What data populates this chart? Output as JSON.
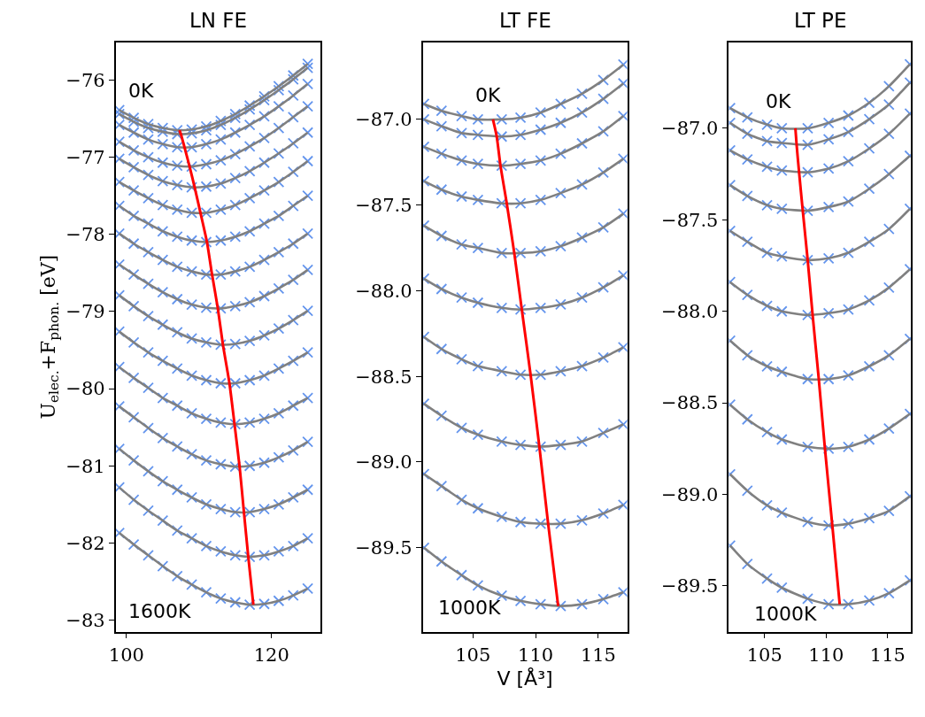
{
  "chart_data": [
    {
      "type": "line",
      "title": "LN FE",
      "ylabel": "U$_{elec.}$+F$_{phon.}$ [eV]",
      "grid": false,
      "x": [
        99,
        101,
        103,
        105,
        107,
        109,
        111,
        113,
        115,
        117,
        119,
        121,
        123,
        125
      ],
      "xlim": [
        98.5,
        126.7
      ],
      "ylim": [
        -83.15,
        -75.51
      ],
      "xticks": [
        100,
        120
      ],
      "yticks": [
        -83,
        -82,
        -81,
        -80,
        -79,
        -78,
        -77,
        -76
      ],
      "annotations": [
        "0K",
        "1600K"
      ],
      "series": [
        {
          "type": "scatter",
          "marker": "cross",
          "color": "#6495ed",
          "values": [
            -76.39,
            -76.49,
            -76.57,
            -76.62,
            -76.65,
            -76.64,
            -76.6,
            -76.53,
            -76.44,
            -76.33,
            -76.21,
            -76.08,
            -75.94,
            -75.79
          ]
        },
        {
          "type": "scatter",
          "marker": "cross",
          "color": "#6495ed",
          "values": [
            -76.44,
            -76.54,
            -76.62,
            -76.67,
            -76.7,
            -76.69,
            -76.65,
            -76.58,
            -76.49,
            -76.38,
            -76.26,
            -76.13,
            -75.99,
            -75.84
          ]
        },
        {
          "type": "scatter",
          "marker": "cross",
          "color": "#6495ed",
          "values": [
            -76.58,
            -76.68,
            -76.77,
            -76.83,
            -76.87,
            -76.87,
            -76.83,
            -76.77,
            -76.68,
            -76.58,
            -76.47,
            -76.34,
            -76.2,
            -76.05
          ]
        },
        {
          "type": "scatter",
          "marker": "cross",
          "color": "#6495ed",
          "values": [
            -76.8,
            -76.91,
            -77.0,
            -77.07,
            -77.11,
            -77.12,
            -77.09,
            -77.04,
            -76.96,
            -76.86,
            -76.75,
            -76.62,
            -76.48,
            -76.34
          ]
        },
        {
          "type": "scatter",
          "marker": "cross",
          "color": "#6495ed",
          "values": [
            -77.02,
            -77.13,
            -77.23,
            -77.31,
            -77.36,
            -77.39,
            -77.38,
            -77.34,
            -77.27,
            -77.18,
            -77.07,
            -76.95,
            -76.82,
            -76.68
          ]
        },
        {
          "type": "scatter",
          "marker": "cross",
          "color": "#6495ed",
          "values": [
            -77.32,
            -77.43,
            -77.53,
            -77.62,
            -77.68,
            -77.72,
            -77.72,
            -77.68,
            -77.62,
            -77.53,
            -77.43,
            -77.32,
            -77.19,
            -77.05
          ]
        },
        {
          "type": "scatter",
          "marker": "cross",
          "color": "#6495ed",
          "values": [
            -77.63,
            -77.76,
            -77.86,
            -77.96,
            -78.03,
            -78.08,
            -78.1,
            -78.08,
            -78.03,
            -77.96,
            -77.86,
            -77.76,
            -77.63,
            -77.5
          ]
        },
        {
          "type": "scatter",
          "marker": "cross",
          "color": "#6495ed",
          "values": [
            -77.99,
            -78.12,
            -78.23,
            -78.33,
            -78.42,
            -78.48,
            -78.52,
            -78.52,
            -78.48,
            -78.42,
            -78.33,
            -78.23,
            -78.12,
            -77.99
          ]
        },
        {
          "type": "scatter",
          "marker": "cross",
          "color": "#6495ed",
          "values": [
            -78.39,
            -78.52,
            -78.64,
            -78.75,
            -78.84,
            -78.91,
            -78.95,
            -78.96,
            -78.93,
            -78.88,
            -78.8,
            -78.7,
            -78.59,
            -78.46
          ]
        },
        {
          "type": "scatter",
          "marker": "cross",
          "color": "#6495ed",
          "values": [
            -78.79,
            -78.93,
            -79.06,
            -79.17,
            -79.27,
            -79.35,
            -79.4,
            -79.43,
            -79.42,
            -79.38,
            -79.31,
            -79.22,
            -79.11,
            -78.99
          ]
        },
        {
          "type": "scatter",
          "marker": "cross",
          "color": "#6495ed",
          "values": [
            -79.26,
            -79.4,
            -79.53,
            -79.64,
            -79.74,
            -79.83,
            -79.89,
            -79.93,
            -79.93,
            -79.89,
            -79.83,
            -79.74,
            -79.64,
            -79.53
          ]
        },
        {
          "type": "scatter",
          "marker": "cross",
          "color": "#6495ed",
          "values": [
            -79.72,
            -79.86,
            -79.99,
            -80.12,
            -80.22,
            -80.32,
            -80.39,
            -80.44,
            -80.46,
            -80.44,
            -80.39,
            -80.32,
            -80.22,
            -80.12
          ]
        },
        {
          "type": "scatter",
          "marker": "cross",
          "color": "#6495ed",
          "values": [
            -80.23,
            -80.37,
            -80.51,
            -80.64,
            -80.75,
            -80.85,
            -80.93,
            -80.98,
            -81.01,
            -81.0,
            -80.96,
            -80.89,
            -80.8,
            -80.69
          ]
        },
        {
          "type": "scatter",
          "marker": "cross",
          "color": "#6495ed",
          "values": [
            -80.78,
            -80.93,
            -81.07,
            -81.2,
            -81.31,
            -81.41,
            -81.5,
            -81.56,
            -81.6,
            -81.6,
            -81.56,
            -81.5,
            -81.41,
            -81.31
          ]
        },
        {
          "type": "scatter",
          "marker": "cross",
          "color": "#6495ed",
          "values": [
            -81.28,
            -81.44,
            -81.58,
            -81.71,
            -81.84,
            -81.94,
            -82.04,
            -82.11,
            -82.16,
            -82.18,
            -82.16,
            -82.11,
            -82.04,
            -81.94
          ]
        },
        {
          "type": "scatter",
          "marker": "cross",
          "color": "#6495ed",
          "values": [
            -81.87,
            -82.02,
            -82.16,
            -82.3,
            -82.43,
            -82.54,
            -82.64,
            -82.72,
            -82.77,
            -82.8,
            -82.79,
            -82.75,
            -82.68,
            -82.59
          ]
        },
        {
          "type": "line",
          "color": "#808080",
          "values": [
            -76.39,
            -76.49,
            -76.57,
            -76.62,
            -76.65,
            -76.64,
            -76.6,
            -76.53,
            -76.44,
            -76.33,
            -76.21,
            -76.08,
            -75.94,
            -75.79
          ]
        },
        {
          "type": "line",
          "color": "#808080",
          "values": [
            -76.44,
            -76.54,
            -76.62,
            -76.67,
            -76.7,
            -76.69,
            -76.65,
            -76.58,
            -76.49,
            -76.38,
            -76.26,
            -76.13,
            -75.99,
            -75.84
          ]
        },
        {
          "type": "line",
          "color": "#808080",
          "values": [
            -76.58,
            -76.68,
            -76.77,
            -76.83,
            -76.87,
            -76.87,
            -76.83,
            -76.77,
            -76.68,
            -76.58,
            -76.47,
            -76.34,
            -76.2,
            -76.05
          ]
        },
        {
          "type": "line",
          "color": "#808080",
          "values": [
            -76.8,
            -76.91,
            -77.0,
            -77.07,
            -77.11,
            -77.12,
            -77.09,
            -77.04,
            -76.96,
            -76.86,
            -76.75,
            -76.62,
            -76.48,
            -76.34
          ]
        },
        {
          "type": "line",
          "color": "#808080",
          "values": [
            -77.02,
            -77.13,
            -77.23,
            -77.31,
            -77.36,
            -77.39,
            -77.38,
            -77.34,
            -77.27,
            -77.18,
            -77.07,
            -76.95,
            -76.82,
            -76.68
          ]
        },
        {
          "type": "line",
          "color": "#808080",
          "values": [
            -77.32,
            -77.43,
            -77.53,
            -77.62,
            -77.68,
            -77.72,
            -77.72,
            -77.68,
            -77.62,
            -77.53,
            -77.43,
            -77.32,
            -77.19,
            -77.05
          ]
        },
        {
          "type": "line",
          "color": "#808080",
          "values": [
            -77.63,
            -77.76,
            -77.86,
            -77.96,
            -78.03,
            -78.08,
            -78.1,
            -78.08,
            -78.03,
            -77.96,
            -77.86,
            -77.76,
            -77.63,
            -77.5
          ]
        },
        {
          "type": "line",
          "color": "#808080",
          "values": [
            -77.99,
            -78.12,
            -78.23,
            -78.33,
            -78.42,
            -78.48,
            -78.52,
            -78.52,
            -78.48,
            -78.42,
            -78.33,
            -78.23,
            -78.12,
            -77.99
          ]
        },
        {
          "type": "line",
          "color": "#808080",
          "values": [
            -78.39,
            -78.52,
            -78.64,
            -78.75,
            -78.84,
            -78.91,
            -78.95,
            -78.96,
            -78.93,
            -78.88,
            -78.8,
            -78.7,
            -78.59,
            -78.46
          ]
        },
        {
          "type": "line",
          "color": "#808080",
          "values": [
            -78.79,
            -78.93,
            -79.06,
            -79.17,
            -79.27,
            -79.35,
            -79.4,
            -79.43,
            -79.42,
            -79.38,
            -79.31,
            -79.22,
            -79.11,
            -78.99
          ]
        },
        {
          "type": "line",
          "color": "#808080",
          "values": [
            -79.26,
            -79.4,
            -79.53,
            -79.64,
            -79.74,
            -79.83,
            -79.89,
            -79.93,
            -79.93,
            -79.89,
            -79.83,
            -79.74,
            -79.64,
            -79.53
          ]
        },
        {
          "type": "line",
          "color": "#808080",
          "values": [
            -79.72,
            -79.86,
            -79.99,
            -80.12,
            -80.22,
            -80.32,
            -80.39,
            -80.44,
            -80.46,
            -80.44,
            -80.39,
            -80.32,
            -80.22,
            -80.12
          ]
        },
        {
          "type": "line",
          "color": "#808080",
          "values": [
            -80.23,
            -80.37,
            -80.51,
            -80.64,
            -80.75,
            -80.85,
            -80.93,
            -80.98,
            -81.01,
            -81.0,
            -80.96,
            -80.89,
            -80.8,
            -80.69
          ]
        },
        {
          "type": "line",
          "color": "#808080",
          "values": [
            -80.78,
            -80.93,
            -81.07,
            -81.2,
            -81.31,
            -81.41,
            -81.5,
            -81.56,
            -81.6,
            -81.6,
            -81.56,
            -81.5,
            -81.41,
            -81.31
          ]
        },
        {
          "type": "line",
          "color": "#808080",
          "values": [
            -81.28,
            -81.44,
            -81.58,
            -81.71,
            -81.84,
            -81.94,
            -82.04,
            -82.11,
            -82.16,
            -82.18,
            -82.16,
            -82.11,
            -82.04,
            -81.94
          ]
        },
        {
          "type": "line",
          "color": "#808080",
          "values": [
            -81.87,
            -82.02,
            -82.16,
            -82.3,
            -82.43,
            -82.54,
            -82.64,
            -82.72,
            -82.77,
            -82.8,
            -82.79,
            -82.75,
            -82.68,
            -82.59
          ]
        },
        {
          "type": "line",
          "color": "#ff0000",
          "x": [
            107.3,
            107.5,
            108.0,
            108.7,
            109.4,
            110.2,
            111.1,
            111.8,
            112.6,
            113.3,
            114.2,
            114.9,
            115.6,
            116.2,
            116.8,
            117.5
          ],
          "values": [
            -76.65,
            -76.7,
            -76.87,
            -77.12,
            -77.39,
            -77.72,
            -78.1,
            -78.52,
            -78.96,
            -79.43,
            -79.93,
            -80.46,
            -81.01,
            -81.6,
            -82.18,
            -82.8
          ]
        }
      ]
    },
    {
      "type": "line",
      "title": "LT FE",
      "xlabel": "V [Å³]",
      "grid": false,
      "x": [
        101.1,
        102.5,
        104.1,
        105.4,
        107.3,
        108.8,
        110.4,
        112.0,
        113.7,
        115.4,
        117.0
      ],
      "xlim": [
        101.0,
        117.3
      ],
      "ylim": [
        -89.99,
        -86.55
      ],
      "xticks": [
        105,
        110,
        115
      ],
      "yticks": [
        -89.5,
        {
          "value": -89,
          "label": "−89.0"
        },
        -88.5,
        {
          "value": -88,
          "label": "−88.0"
        },
        -87.5,
        {
          "value": -87,
          "label": "−87.0"
        }
      ],
      "annotations": [
        "0K",
        "1000K"
      ],
      "series": [
        {
          "type": "scatter",
          "marker": "cross",
          "color": "#6495ed",
          "values": [
            -86.91,
            -86.95,
            -86.98,
            -87.0,
            -87.0,
            -86.99,
            -86.96,
            -86.91,
            -86.85,
            -86.77,
            -86.68
          ]
        },
        {
          "type": "scatter",
          "marker": "cross",
          "color": "#6495ed",
          "values": [
            -87.0,
            -87.04,
            -87.08,
            -87.09,
            -87.1,
            -87.09,
            -87.06,
            -87.02,
            -86.96,
            -86.88,
            -86.79
          ]
        },
        {
          "type": "scatter",
          "marker": "cross",
          "color": "#6495ed",
          "values": [
            -87.16,
            -87.2,
            -87.24,
            -87.26,
            -87.27,
            -87.26,
            -87.24,
            -87.2,
            -87.14,
            -87.07,
            -86.98
          ]
        },
        {
          "type": "scatter",
          "marker": "cross",
          "color": "#6495ed",
          "values": [
            -87.36,
            -87.41,
            -87.45,
            -87.47,
            -87.49,
            -87.49,
            -87.47,
            -87.43,
            -87.38,
            -87.31,
            -87.23
          ]
        },
        {
          "type": "scatter",
          "marker": "cross",
          "color": "#6495ed",
          "values": [
            -87.62,
            -87.68,
            -87.73,
            -87.75,
            -87.78,
            -87.78,
            -87.77,
            -87.74,
            -87.69,
            -87.63,
            -87.55
          ]
        },
        {
          "type": "scatter",
          "marker": "cross",
          "color": "#6495ed",
          "values": [
            -87.93,
            -87.99,
            -88.04,
            -88.07,
            -88.1,
            -88.11,
            -88.1,
            -88.08,
            -88.04,
            -87.98,
            -87.91
          ]
        },
        {
          "type": "scatter",
          "marker": "cross",
          "color": "#6495ed",
          "values": [
            -88.27,
            -88.34,
            -88.4,
            -88.44,
            -88.47,
            -88.49,
            -88.49,
            -88.47,
            -88.44,
            -88.39,
            -88.33
          ]
        },
        {
          "type": "scatter",
          "marker": "cross",
          "color": "#6495ed",
          "values": [
            -88.66,
            -88.73,
            -88.8,
            -88.84,
            -88.88,
            -88.9,
            -88.91,
            -88.9,
            -88.88,
            -88.83,
            -88.78
          ]
        },
        {
          "type": "scatter",
          "marker": "cross",
          "color": "#6495ed",
          "values": [
            -89.07,
            -89.14,
            -89.22,
            -89.27,
            -89.32,
            -89.35,
            -89.36,
            -89.36,
            -89.34,
            -89.3,
            -89.25
          ]
        },
        {
          "type": "scatter",
          "marker": "cross",
          "color": "#6495ed",
          "values": [
            -89.5,
            -89.58,
            -89.66,
            -89.72,
            -89.78,
            -89.81,
            -89.83,
            -89.84,
            -89.83,
            -89.8,
            -89.76
          ]
        },
        {
          "type": "line",
          "color": "#808080",
          "values": [
            -86.91,
            -86.95,
            -86.98,
            -87.0,
            -87.0,
            -86.99,
            -86.96,
            -86.91,
            -86.85,
            -86.77,
            -86.68
          ]
        },
        {
          "type": "line",
          "color": "#808080",
          "values": [
            -87.0,
            -87.04,
            -87.08,
            -87.09,
            -87.1,
            -87.09,
            -87.06,
            -87.02,
            -86.96,
            -86.88,
            -86.79
          ]
        },
        {
          "type": "line",
          "color": "#808080",
          "values": [
            -87.16,
            -87.2,
            -87.24,
            -87.26,
            -87.27,
            -87.26,
            -87.24,
            -87.2,
            -87.14,
            -87.07,
            -86.98
          ]
        },
        {
          "type": "line",
          "color": "#808080",
          "values": [
            -87.36,
            -87.41,
            -87.45,
            -87.47,
            -87.49,
            -87.49,
            -87.47,
            -87.43,
            -87.38,
            -87.31,
            -87.23
          ]
        },
        {
          "type": "line",
          "color": "#808080",
          "values": [
            -87.62,
            -87.68,
            -87.73,
            -87.75,
            -87.78,
            -87.78,
            -87.77,
            -87.74,
            -87.69,
            -87.63,
            -87.55
          ]
        },
        {
          "type": "line",
          "color": "#808080",
          "values": [
            -87.93,
            -87.99,
            -88.04,
            -88.07,
            -88.1,
            -88.11,
            -88.1,
            -88.08,
            -88.04,
            -87.98,
            -87.91
          ]
        },
        {
          "type": "line",
          "color": "#808080",
          "values": [
            -88.27,
            -88.34,
            -88.4,
            -88.44,
            -88.47,
            -88.49,
            -88.49,
            -88.47,
            -88.44,
            -88.39,
            -88.33
          ]
        },
        {
          "type": "line",
          "color": "#808080",
          "values": [
            -88.66,
            -88.73,
            -88.8,
            -88.84,
            -88.88,
            -88.9,
            -88.91,
            -88.9,
            -88.88,
            -88.83,
            -88.78
          ]
        },
        {
          "type": "line",
          "color": "#808080",
          "values": [
            -89.07,
            -89.14,
            -89.22,
            -89.27,
            -89.32,
            -89.35,
            -89.36,
            -89.36,
            -89.34,
            -89.3,
            -89.25
          ]
        },
        {
          "type": "line",
          "color": "#808080",
          "values": [
            -89.5,
            -89.58,
            -89.66,
            -89.72,
            -89.78,
            -89.81,
            -89.83,
            -89.84,
            -89.83,
            -89.8,
            -89.76
          ]
        },
        {
          "type": "line",
          "color": "#ff0000",
          "x": [
            106.6,
            106.9,
            107.2,
            107.7,
            108.3,
            108.9,
            109.6,
            110.3,
            111.0,
            111.8
          ],
          "values": [
            -87.0,
            -87.1,
            -87.27,
            -87.49,
            -87.78,
            -88.11,
            -88.49,
            -88.91,
            -89.36,
            -89.84
          ]
        }
      ]
    },
    {
      "type": "line",
      "title": "LT PE",
      "grid": false,
      "x": [
        102.2,
        103.6,
        105.2,
        106.4,
        108.5,
        110.2,
        111.8,
        113.5,
        115.1,
        116.8
      ],
      "xlim": [
        102.1,
        116.9
      ],
      "ylim": [
        -89.75,
        -86.53
      ],
      "xticks": [
        105,
        110,
        115
      ],
      "yticks": [
        -89.5,
        {
          "value": -89,
          "label": "−89.0"
        },
        -88.5,
        {
          "value": -88,
          "label": "−88.0"
        },
        -87.5,
        {
          "value": -87,
          "label": "−87.0"
        }
      ],
      "annotations": [
        "0K",
        "1000K"
      ],
      "series": [
        {
          "type": "scatter",
          "marker": "cross",
          "color": "#6495ed",
          "values": [
            -86.89,
            -86.94,
            -86.98,
            -87.0,
            -87.0,
            -86.97,
            -86.93,
            -86.86,
            -86.77,
            -86.65
          ]
        },
        {
          "type": "scatter",
          "marker": "cross",
          "color": "#6495ed",
          "values": [
            -86.97,
            -87.03,
            -87.07,
            -87.08,
            -87.09,
            -87.06,
            -87.02,
            -86.95,
            -86.87,
            -86.75
          ]
        },
        {
          "type": "scatter",
          "marker": "cross",
          "color": "#6495ed",
          "values": [
            -87.12,
            -87.17,
            -87.21,
            -87.23,
            -87.24,
            -87.22,
            -87.18,
            -87.11,
            -87.03,
            -86.92
          ]
        },
        {
          "type": "scatter",
          "marker": "cross",
          "color": "#6495ed",
          "values": [
            -87.31,
            -87.37,
            -87.42,
            -87.44,
            -87.45,
            -87.43,
            -87.4,
            -87.33,
            -87.25,
            -87.15
          ]
        },
        {
          "type": "scatter",
          "marker": "cross",
          "color": "#6495ed",
          "values": [
            -87.56,
            -87.62,
            -87.68,
            -87.7,
            -87.72,
            -87.71,
            -87.68,
            -87.62,
            -87.55,
            -87.44
          ]
        },
        {
          "type": "scatter",
          "marker": "cross",
          "color": "#6495ed",
          "values": [
            -87.84,
            -87.91,
            -87.97,
            -88.0,
            -88.02,
            -88.01,
            -87.99,
            -87.94,
            -87.87,
            -87.77
          ]
        },
        {
          "type": "scatter",
          "marker": "cross",
          "color": "#6495ed",
          "values": [
            -88.16,
            -88.24,
            -88.3,
            -88.33,
            -88.37,
            -88.37,
            -88.35,
            -88.3,
            -88.24,
            -88.15
          ]
        },
        {
          "type": "scatter",
          "marker": "cross",
          "color": "#6495ed",
          "values": [
            -88.51,
            -88.59,
            -88.66,
            -88.7,
            -88.74,
            -88.75,
            -88.74,
            -88.7,
            -88.64,
            -88.56
          ]
        },
        {
          "type": "scatter",
          "marker": "cross",
          "color": "#6495ed",
          "values": [
            -88.89,
            -88.98,
            -89.06,
            -89.1,
            -89.15,
            -89.17,
            -89.16,
            -89.13,
            -89.09,
            -89.01
          ]
        },
        {
          "type": "scatter",
          "marker": "cross",
          "color": "#6495ed",
          "values": [
            -89.28,
            -89.38,
            -89.46,
            -89.51,
            -89.57,
            -89.6,
            -89.6,
            -89.58,
            -89.54,
            -89.47
          ]
        },
        {
          "type": "line",
          "color": "#808080",
          "values": [
            -86.89,
            -86.94,
            -86.98,
            -87.0,
            -87.0,
            -86.97,
            -86.93,
            -86.86,
            -86.77,
            -86.65
          ]
        },
        {
          "type": "line",
          "color": "#808080",
          "values": [
            -86.97,
            -87.03,
            -87.07,
            -87.08,
            -87.09,
            -87.06,
            -87.02,
            -86.95,
            -86.87,
            -86.75
          ]
        },
        {
          "type": "line",
          "color": "#808080",
          "values": [
            -87.12,
            -87.17,
            -87.21,
            -87.23,
            -87.24,
            -87.22,
            -87.18,
            -87.11,
            -87.03,
            -86.92
          ]
        },
        {
          "type": "line",
          "color": "#808080",
          "values": [
            -87.31,
            -87.37,
            -87.42,
            -87.44,
            -87.45,
            -87.43,
            -87.4,
            -87.33,
            -87.25,
            -87.15
          ]
        },
        {
          "type": "line",
          "color": "#808080",
          "values": [
            -87.56,
            -87.62,
            -87.68,
            -87.7,
            -87.72,
            -87.71,
            -87.68,
            -87.62,
            -87.55,
            -87.44
          ]
        },
        {
          "type": "line",
          "color": "#808080",
          "values": [
            -87.84,
            -87.91,
            -87.97,
            -88.0,
            -88.02,
            -88.01,
            -87.99,
            -87.94,
            -87.87,
            -87.77
          ]
        },
        {
          "type": "line",
          "color": "#808080",
          "values": [
            -88.16,
            -88.24,
            -88.3,
            -88.33,
            -88.37,
            -88.37,
            -88.35,
            -88.3,
            -88.24,
            -88.15
          ]
        },
        {
          "type": "line",
          "color": "#808080",
          "values": [
            -88.51,
            -88.59,
            -88.66,
            -88.7,
            -88.74,
            -88.75,
            -88.74,
            -88.7,
            -88.64,
            -88.56
          ]
        },
        {
          "type": "line",
          "color": "#808080",
          "values": [
            -88.89,
            -88.98,
            -89.06,
            -89.1,
            -89.15,
            -89.17,
            -89.16,
            -89.13,
            -89.09,
            -89.01
          ]
        },
        {
          "type": "line",
          "color": "#808080",
          "values": [
            -89.28,
            -89.38,
            -89.46,
            -89.51,
            -89.57,
            -89.6,
            -89.6,
            -89.58,
            -89.54,
            -89.47
          ]
        },
        {
          "type": "line",
          "color": "#ff0000",
          "x": [
            107.5,
            107.6,
            107.8,
            108.1,
            108.5,
            108.9,
            109.4,
            109.9,
            110.5,
            111.1
          ],
          "values": [
            -87.0,
            -87.09,
            -87.24,
            -87.45,
            -87.72,
            -88.02,
            -88.37,
            -88.75,
            -89.17,
            -89.6
          ]
        }
      ]
    }
  ]
}
